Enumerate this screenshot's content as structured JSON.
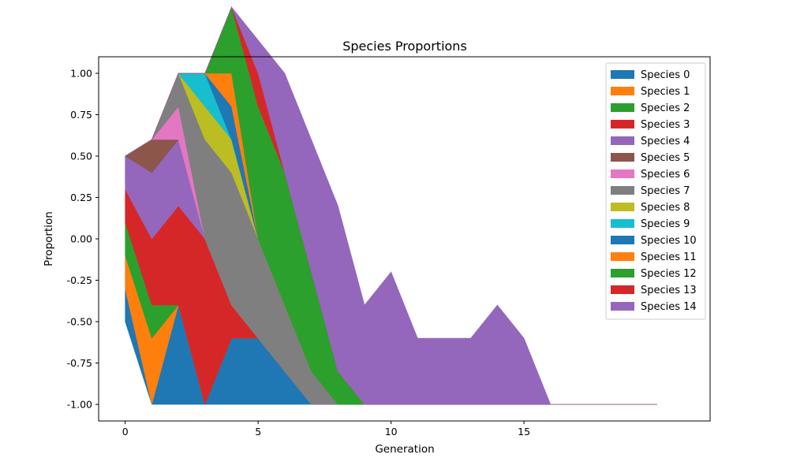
{
  "chart_data": {
    "type": "area",
    "title": "Species Proportions",
    "xlabel": "Generation",
    "ylabel": "Proportion",
    "xlim": [
      -1,
      22
    ],
    "ylim": [
      -1.1,
      1.1
    ],
    "x_ticks": [
      0,
      5,
      10,
      15
    ],
    "y_ticks": [
      "-1.00",
      "-0.75",
      "-0.50",
      "-0.25",
      "0.00",
      "0.25",
      "0.50",
      "0.75",
      "1.00"
    ],
    "y_tick_values": [
      -1.0,
      -0.75,
      -0.5,
      -0.25,
      0.0,
      0.25,
      0.5,
      0.75,
      1.0
    ],
    "baseline": [
      -0.5,
      -1.0,
      -1.0,
      -1.0,
      -1.0,
      -1.0,
      -1.0,
      -1.0,
      -1.0,
      -1.0,
      -1.0,
      -1.0,
      -1.0,
      -1.0,
      -1.0,
      -1.0,
      -1.0,
      -1.0,
      -1.0,
      -1.0,
      -1.0
    ],
    "x": [
      0,
      1,
      2,
      3,
      4,
      5,
      6,
      7,
      8,
      9,
      10,
      11,
      12,
      13,
      14,
      15,
      16,
      17,
      18,
      19,
      20
    ],
    "legend_location": "upper right",
    "series": [
      {
        "name": "Species 0",
        "color": "#1f77b4",
        "values": [
          0.2,
          0.0,
          0.6,
          0.0,
          0.4,
          0.4,
          0.2,
          0.0,
          0.0,
          0.0,
          0.0,
          0.0,
          0.0,
          0.0,
          0.0,
          0.0,
          0.0,
          0.0,
          0.0,
          0.0,
          0.0
        ]
      },
      {
        "name": "Species 1",
        "color": "#ff7f0e",
        "values": [
          0.2,
          0.4,
          0.0,
          0.0,
          0.0,
          0.0,
          0.0,
          0.0,
          0.0,
          0.0,
          0.0,
          0.0,
          0.0,
          0.0,
          0.0,
          0.0,
          0.0,
          0.0,
          0.0,
          0.0,
          0.0
        ]
      },
      {
        "name": "Species 2",
        "color": "#2ca02c",
        "values": [
          0.2,
          0.2,
          0.0,
          0.0,
          0.0,
          0.0,
          0.0,
          0.0,
          0.0,
          0.0,
          0.0,
          0.0,
          0.0,
          0.0,
          0.0,
          0.0,
          0.0,
          0.0,
          0.0,
          0.0,
          0.0
        ]
      },
      {
        "name": "Species 3",
        "color": "#d62728",
        "values": [
          0.2,
          0.4,
          0.6,
          1.0,
          0.2,
          0.0,
          0.0,
          0.0,
          0.0,
          0.0,
          0.0,
          0.0,
          0.0,
          0.0,
          0.0,
          0.0,
          0.0,
          0.0,
          0.0,
          0.0,
          0.0
        ]
      },
      {
        "name": "Species 4",
        "color": "#9467bd",
        "values": [
          0.2,
          0.4,
          0.4,
          0.0,
          0.0,
          0.0,
          0.0,
          0.0,
          0.0,
          0.0,
          0.0,
          0.0,
          0.0,
          0.0,
          0.0,
          0.0,
          0.0,
          0.0,
          0.0,
          0.0,
          0.0
        ]
      },
      {
        "name": "Species 5",
        "color": "#8c564b",
        "values": [
          0.0,
          0.2,
          0.0,
          0.0,
          0.0,
          0.0,
          0.0,
          0.0,
          0.0,
          0.0,
          0.0,
          0.0,
          0.0,
          0.0,
          0.0,
          0.0,
          0.0,
          0.0,
          0.0,
          0.0,
          0.0
        ]
      },
      {
        "name": "Species 6",
        "color": "#e377c2",
        "values": [
          0.0,
          0.0,
          0.2,
          0.0,
          0.0,
          0.0,
          0.0,
          0.0,
          0.0,
          0.0,
          0.0,
          0.0,
          0.0,
          0.0,
          0.0,
          0.0,
          0.0,
          0.0,
          0.0,
          0.0,
          0.0
        ]
      },
      {
        "name": "Species 7",
        "color": "#7f7f7f",
        "values": [
          0.0,
          0.0,
          0.2,
          0.6,
          0.8,
          0.6,
          0.4,
          0.2,
          0.0,
          0.0,
          0.0,
          0.0,
          0.0,
          0.0,
          0.0,
          0.0,
          0.0,
          0.0,
          0.0,
          0.0,
          0.0
        ]
      },
      {
        "name": "Species 8",
        "color": "#bcbd22",
        "values": [
          0.0,
          0.0,
          0.0,
          0.2,
          0.2,
          0.0,
          0.0,
          0.0,
          0.0,
          0.0,
          0.0,
          0.0,
          0.0,
          0.0,
          0.0,
          0.0,
          0.0,
          0.0,
          0.0,
          0.0,
          0.0
        ]
      },
      {
        "name": "Species 9",
        "color": "#17becf",
        "values": [
          0.0,
          0.0,
          0.0,
          0.2,
          0.0,
          0.0,
          0.0,
          0.0,
          0.0,
          0.0,
          0.0,
          0.0,
          0.0,
          0.0,
          0.0,
          0.0,
          0.0,
          0.0,
          0.0,
          0.0,
          0.0
        ]
      },
      {
        "name": "Species 10",
        "color": "#1f77b4",
        "values": [
          0.0,
          0.0,
          0.0,
          0.0,
          0.2,
          0.0,
          0.0,
          0.0,
          0.0,
          0.0,
          0.0,
          0.0,
          0.0,
          0.0,
          0.0,
          0.0,
          0.0,
          0.0,
          0.0,
          0.0,
          0.0
        ]
      },
      {
        "name": "Species 11",
        "color": "#ff7f0e",
        "values": [
          0.0,
          0.0,
          0.0,
          0.0,
          0.2,
          0.0,
          0.0,
          0.0,
          0.0,
          0.0,
          0.0,
          0.0,
          0.0,
          0.0,
          0.0,
          0.0,
          0.0,
          0.0,
          0.0,
          0.0,
          0.0
        ]
      },
      {
        "name": "Species 12",
        "color": "#2ca02c",
        "values": [
          0.0,
          0.0,
          0.0,
          0.0,
          0.4,
          0.8,
          0.8,
          0.6,
          0.2,
          0.0,
          0.0,
          0.0,
          0.0,
          0.0,
          0.0,
          0.0,
          0.0,
          0.0,
          0.0,
          0.0,
          0.0
        ]
      },
      {
        "name": "Species 13",
        "color": "#d62728",
        "values": [
          0.0,
          0.0,
          0.0,
          0.0,
          0.0,
          0.2,
          0.0,
          0.0,
          0.0,
          0.0,
          0.0,
          0.0,
          0.0,
          0.0,
          0.0,
          0.0,
          0.0,
          0.0,
          0.0,
          0.0,
          0.0
        ]
      },
      {
        "name": "Species 14",
        "color": "#9467bd",
        "values": [
          0.0,
          0.0,
          0.0,
          0.0,
          0.0,
          0.2,
          0.6,
          0.8,
          1.0,
          0.6,
          0.8,
          0.4,
          0.4,
          0.4,
          0.6,
          0.4,
          0.0,
          0.0,
          0.0,
          0.0,
          0.0
        ]
      }
    ]
  }
}
